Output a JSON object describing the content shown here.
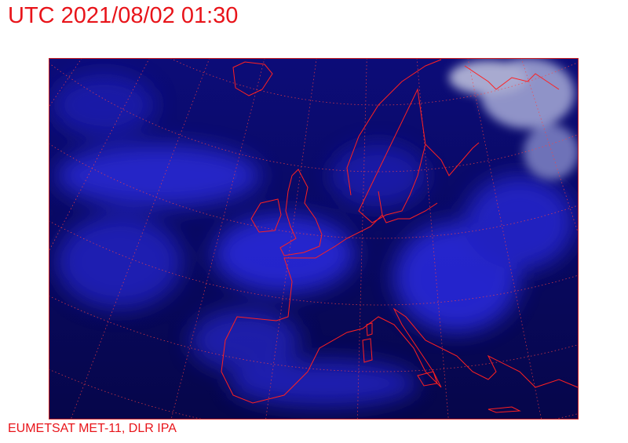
{
  "header": {
    "title": "UTC 2021/08/02 01:30"
  },
  "footer": {
    "credit": "EUMETSAT MET-11, DLR IPA"
  },
  "map": {
    "type": "satellite-image",
    "region": "Europe",
    "colors": {
      "background": "#0a0a6a",
      "clouds": "#3a3aff",
      "coastline": "#ff2020",
      "graticule": "#ff4040",
      "frame": "#cc2020"
    }
  }
}
